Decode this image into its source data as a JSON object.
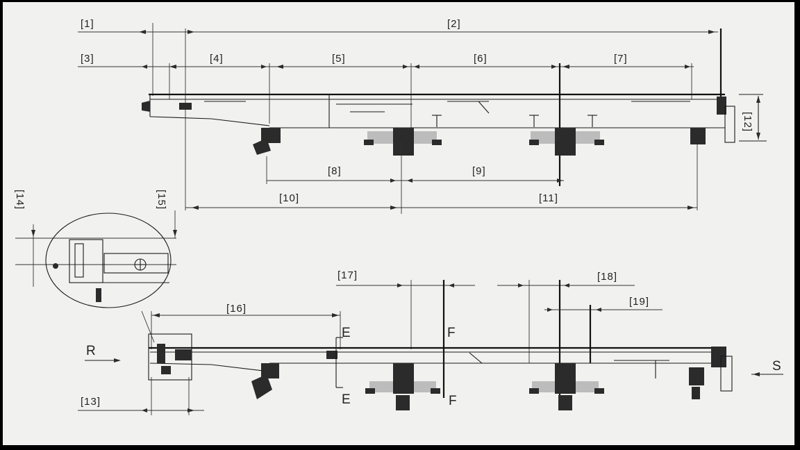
{
  "labels": {
    "d1": "[1]",
    "d2": "[2]",
    "d3": "[3]",
    "d4": "[4]",
    "d5": "[5]",
    "d6": "[6]",
    "d7": "[7]",
    "d8": "[8]",
    "d9": "[9]",
    "d10": "[10]",
    "d11": "[11]",
    "d12": "[12]",
    "d13": "[13]",
    "d14": "[14]",
    "d15": "[15]",
    "d16": "[16]",
    "d17": "[17]",
    "d18": "[18]",
    "d19": "[19]"
  },
  "sections": {
    "r": "R",
    "s": "S",
    "e_top": "E",
    "e_bottom": "E",
    "f_top": "F",
    "f_bottom": "F"
  }
}
